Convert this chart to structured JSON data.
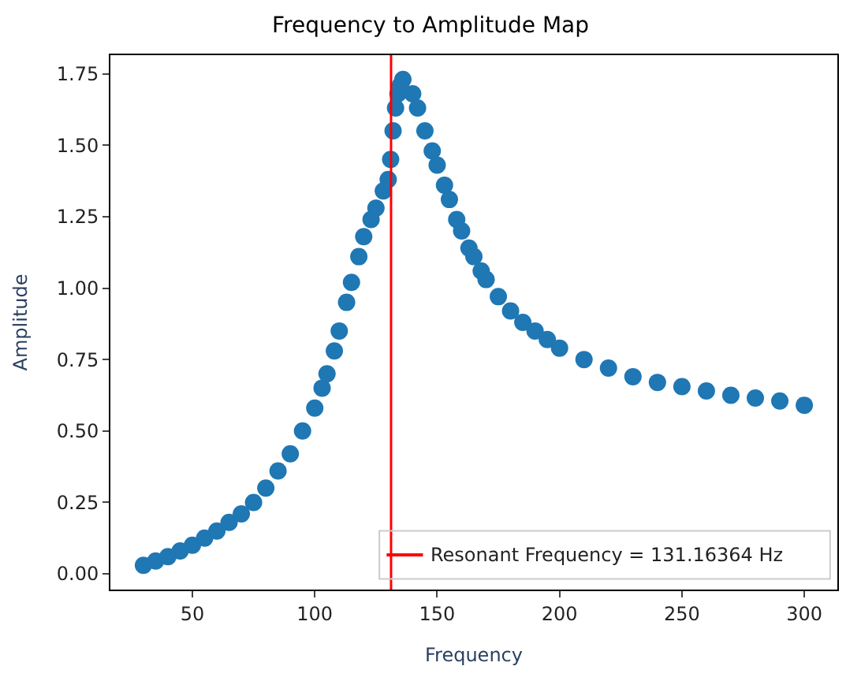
{
  "chart_data": {
    "type": "scatter",
    "title": "Frequency to Amplitude Map",
    "xlabel": "Frequency",
    "ylabel": "Amplitude",
    "x": [
      30,
      35,
      40,
      45,
      50,
      55,
      60,
      65,
      70,
      75,
      80,
      85,
      90,
      95,
      100,
      103,
      105,
      108,
      110,
      113,
      115,
      118,
      120,
      123,
      125,
      128,
      130,
      131,
      132,
      133,
      134,
      135,
      136,
      140,
      142,
      145,
      148,
      150,
      153,
      155,
      158,
      160,
      163,
      165,
      168,
      170,
      175,
      180,
      185,
      190,
      195,
      200,
      210,
      220,
      230,
      240,
      250,
      260,
      270,
      280,
      290,
      300
    ],
    "series": [
      {
        "color": "#1f77b4",
        "values": [
          0.03,
          0.045,
          0.06,
          0.08,
          0.1,
          0.125,
          0.15,
          0.18,
          0.21,
          0.25,
          0.3,
          0.36,
          0.42,
          0.5,
          0.58,
          0.65,
          0.7,
          0.78,
          0.85,
          0.95,
          1.02,
          1.11,
          1.18,
          1.24,
          1.28,
          1.34,
          1.38,
          1.45,
          1.55,
          1.63,
          1.68,
          1.71,
          1.73,
          1.68,
          1.63,
          1.55,
          1.48,
          1.43,
          1.36,
          1.31,
          1.24,
          1.2,
          1.14,
          1.11,
          1.06,
          1.03,
          0.97,
          0.92,
          0.88,
          0.85,
          0.82,
          0.79,
          0.75,
          0.72,
          0.69,
          0.67,
          0.655,
          0.64,
          0.625,
          0.615,
          0.605,
          0.59
        ]
      }
    ],
    "xlim": [
      16.5,
      313.5
    ],
    "ylim": [
      -0.055,
      1.815
    ],
    "xticks": [
      50,
      100,
      150,
      200,
      250,
      300
    ],
    "yticks": [
      {
        "value": 0,
        "label": "0.00"
      },
      {
        "value": 0.25,
        "label": "0.25"
      },
      {
        "value": 0.5,
        "label": "0.50"
      },
      {
        "value": 0.75,
        "label": "0.75"
      },
      {
        "value": 1,
        "label": "1.00"
      },
      {
        "value": 1.25,
        "label": "1.25"
      },
      {
        "value": 1.5,
        "label": "1.50"
      },
      {
        "value": 1.75,
        "label": "1.75"
      }
    ],
    "ref_lines": [
      {
        "axis": "x",
        "value": 131.16364,
        "label": "Resonant Frequency = 131.16364 Hz",
        "color": "#ff0000"
      }
    ],
    "marker": "circle",
    "legend": "bottom right"
  }
}
